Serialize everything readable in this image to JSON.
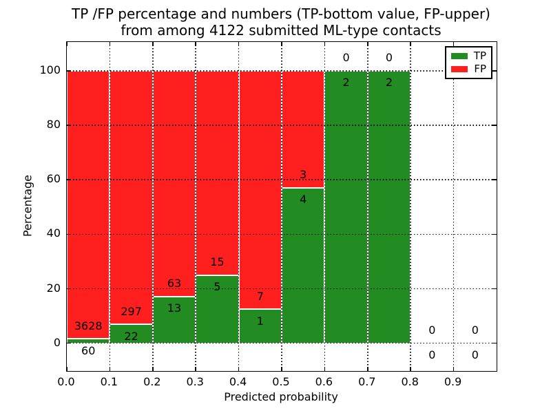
{
  "title": {
    "line1": "TP /FP percentage and numbers (TP-bottom value, FP-upper)",
    "line2": "from among 4122 submitted ML-type contacts"
  },
  "axes": {
    "xlabel": "Predicted probability",
    "ylabel": "Percentage",
    "xtick_values": [
      0,
      0.1,
      0.2,
      0.3,
      0.4,
      0.5,
      0.6,
      0.7,
      0.8,
      0.9
    ],
    "xtick_labels": [
      "0.0",
      "0.1",
      "0.2",
      "0.3",
      "0.4",
      "0.5",
      "0.6",
      "0.7",
      "0.8",
      "0.9"
    ],
    "ytick_values": [
      0,
      20,
      40,
      60,
      80,
      100
    ],
    "ytick_labels": [
      "0",
      "20",
      "40",
      "60",
      "80",
      "100"
    ],
    "xlim": [
      0,
      1
    ],
    "ylim": [
      -10.2,
      110.6
    ],
    "grid": "dotted"
  },
  "legend": {
    "position": "upper right",
    "items": [
      {
        "label": "TP",
        "color": "#228b22"
      },
      {
        "label": "FP",
        "color": "#ff1f1f"
      }
    ]
  },
  "chart_data": {
    "type": "bar",
    "stacked": true,
    "title": "TP /FP percentage and numbers (TP-bottom value, FP-upper) from among 4122 submitted ML-type contacts",
    "xlabel": "Predicted probability",
    "ylabel": "Percentage",
    "total_submitted_contacts": 4122,
    "bin_width": 0.1,
    "bin_starts": [
      0,
      0.1,
      0.2,
      0.3,
      0.4,
      0.5,
      0.6,
      0.7,
      0.8,
      0.9
    ],
    "categories": [
      "0.0-0.1",
      "0.1-0.2",
      "0.2-0.3",
      "0.3-0.4",
      "0.4-0.5",
      "0.5-0.6",
      "0.6-0.7",
      "0.7-0.8",
      "0.8-0.9",
      "0.9-1.0"
    ],
    "series": [
      {
        "name": "TP",
        "color": "#228b22",
        "counts": [
          60,
          22,
          13,
          5,
          1,
          4,
          2,
          2,
          0,
          0
        ]
      },
      {
        "name": "FP",
        "color": "#ff1f1f",
        "counts": [
          3628,
          297,
          63,
          15,
          7,
          3,
          0,
          0,
          0,
          0
        ]
      }
    ],
    "tp_percent_of_bin": [
      1.63,
      6.9,
      17.11,
      25.0,
      12.5,
      57.14,
      100.0,
      100.0,
      null,
      null
    ],
    "bars_normalized_to": 100,
    "xlim": [
      0,
      1
    ],
    "ylim": [
      -10.2,
      110.6
    ],
    "grid": true,
    "legend_position": "upper right"
  }
}
